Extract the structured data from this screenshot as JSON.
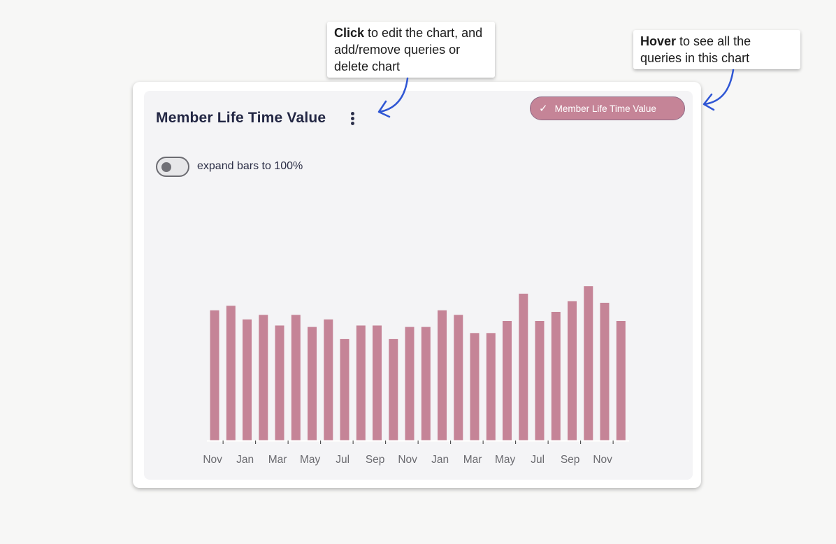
{
  "annotations": {
    "click": {
      "bold": "Click",
      "rest": " to edit the chart, and add/remove queries or delete chart"
    },
    "hover": {
      "bold": "Hover",
      "rest": " to see all the queries in this chart"
    }
  },
  "card": {
    "title": "Member Life Time Value",
    "query_pill": {
      "label": "Member Life Time Value",
      "icon": "check-icon"
    },
    "toggle": {
      "label": "expand bars to 100%",
      "on": false
    }
  },
  "colors": {
    "bar": "#c58497",
    "annotation_arrow": "#2f56d4",
    "axis_label": "#6b6b70"
  },
  "chart_data": {
    "type": "bar",
    "title": "",
    "xlabel": "",
    "ylabel": "",
    "ylim": [
      0,
      100
    ],
    "tick_labels": [
      "Nov",
      "Jan",
      "Mar",
      "May",
      "Jul",
      "Sep",
      "Nov",
      "Jan",
      "Mar",
      "May",
      "Jul",
      "Sep",
      "Nov"
    ],
    "values": [
      86,
      89,
      80,
      83,
      76,
      83,
      75,
      80,
      67,
      76,
      76,
      67,
      75,
      75,
      86,
      83,
      71,
      71,
      79,
      97,
      79,
      85,
      92,
      102,
      91,
      79
    ]
  }
}
